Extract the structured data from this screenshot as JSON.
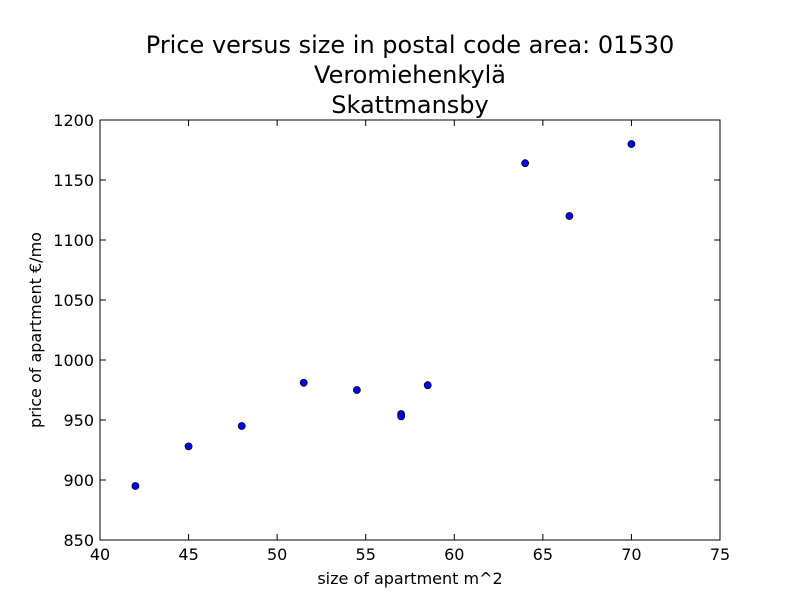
{
  "chart_data": {
    "type": "scatter",
    "title_lines": [
      "Price versus size in postal code area: 01530",
      "Veromiehenkylä",
      "Skattmansby"
    ],
    "xlabel": "size of apartment m^2",
    "ylabel": "price of apartment €/mo",
    "xlim": [
      40,
      75
    ],
    "ylim": [
      850,
      1200
    ],
    "xticks": [
      40,
      45,
      50,
      55,
      60,
      65,
      70,
      75
    ],
    "yticks": [
      850,
      900,
      950,
      1000,
      1050,
      1100,
      1150,
      1200
    ],
    "grid": false,
    "marker_color": "#0000ff",
    "points": [
      {
        "x": 42,
        "y": 895
      },
      {
        "x": 45,
        "y": 928
      },
      {
        "x": 48,
        "y": 945
      },
      {
        "x": 51.5,
        "y": 981
      },
      {
        "x": 54.5,
        "y": 975
      },
      {
        "x": 57,
        "y": 955
      },
      {
        "x": 57,
        "y": 953
      },
      {
        "x": 58.5,
        "y": 979
      },
      {
        "x": 64,
        "y": 1164
      },
      {
        "x": 66.5,
        "y": 1120
      },
      {
        "x": 70,
        "y": 1180
      }
    ]
  }
}
